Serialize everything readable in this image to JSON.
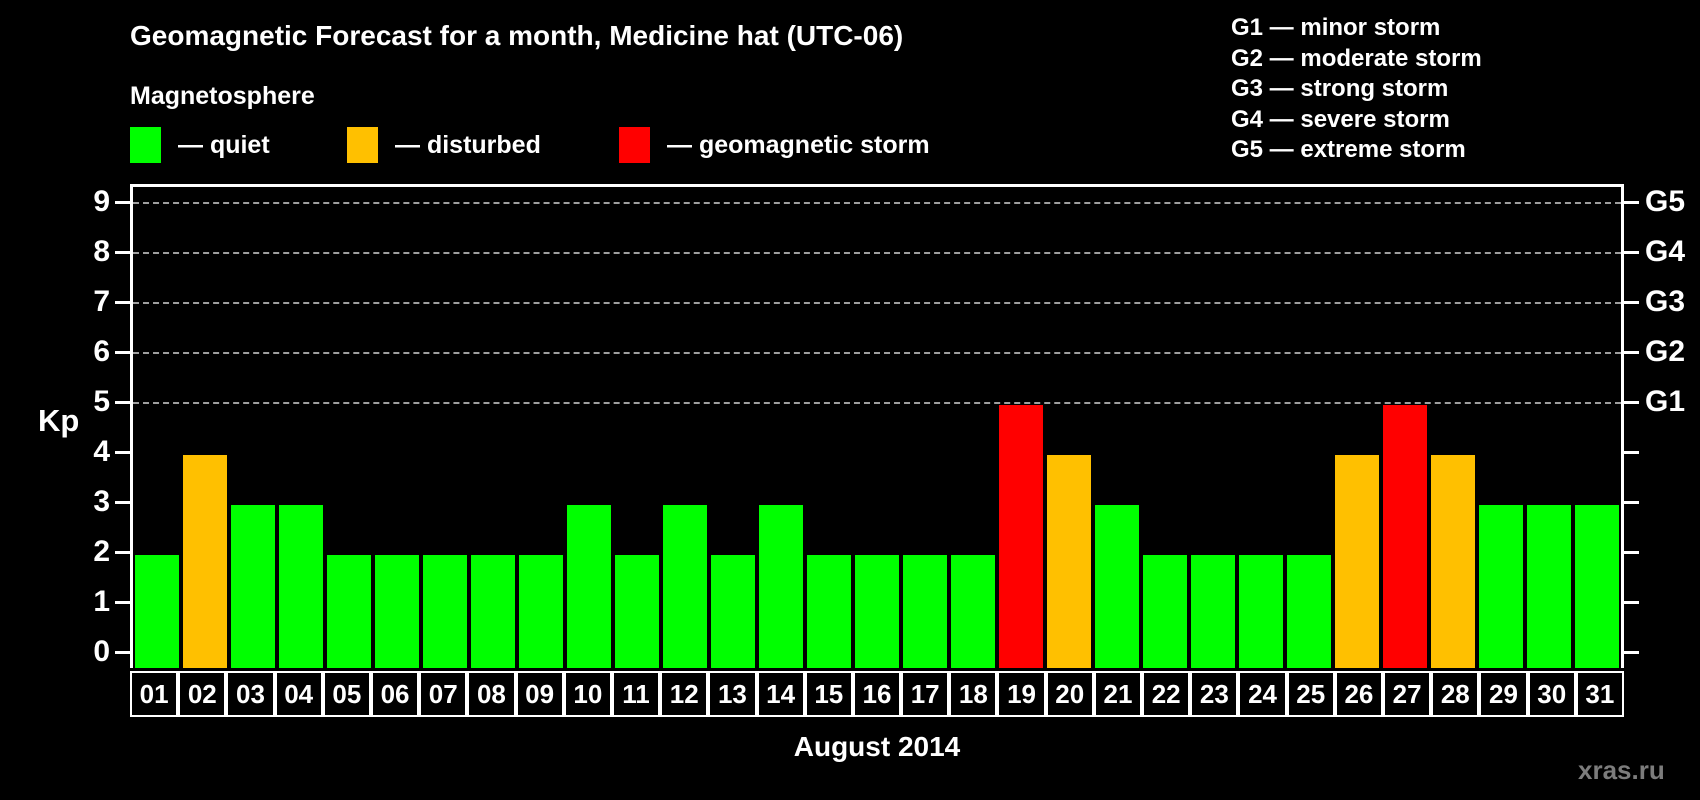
{
  "title": "Geomagnetic Forecast for a month, Medicine hat (UTC-06)",
  "subtitle": "Magnetosphere",
  "legend": {
    "items": [
      {
        "key": "quiet",
        "color": "#00ff00",
        "label": "— quiet"
      },
      {
        "key": "disturbed",
        "color": "#ffc000",
        "label": "— disturbed"
      },
      {
        "key": "storm",
        "color": "#ff0000",
        "label": "— geomagnetic storm"
      }
    ]
  },
  "storm_scale": {
    "items": [
      {
        "code": "G1",
        "label": "G1 — minor storm"
      },
      {
        "code": "G2",
        "label": "G2 — moderate storm"
      },
      {
        "code": "G3",
        "label": "G3 — strong storm"
      },
      {
        "code": "G4",
        "label": "G4 — severe storm"
      },
      {
        "code": "G5",
        "label": "G5 — extreme storm"
      }
    ]
  },
  "watermark": "xras.ru",
  "chart_data": {
    "type": "bar",
    "title": "Geomagnetic Forecast for a month, Medicine hat (UTC-06)",
    "xlabel": "August 2014",
    "ylabel": "Kp",
    "ylim": [
      0,
      9
    ],
    "y_ticks": [
      0,
      1,
      2,
      3,
      4,
      5,
      6,
      7,
      8,
      9
    ],
    "gridlines_at": [
      5,
      6,
      7,
      8,
      9
    ],
    "grid": "dashed horizontal lines at Kp 5-9 only",
    "legend_position": "top-left",
    "right_axis": [
      {
        "value": 5,
        "label": "G1"
      },
      {
        "value": 6,
        "label": "G2"
      },
      {
        "value": 7,
        "label": "G3"
      },
      {
        "value": 8,
        "label": "G4"
      },
      {
        "value": 9,
        "label": "G5"
      }
    ],
    "categories": [
      "01",
      "02",
      "03",
      "04",
      "05",
      "06",
      "07",
      "08",
      "09",
      "10",
      "11",
      "12",
      "13",
      "14",
      "15",
      "16",
      "17",
      "18",
      "19",
      "20",
      "21",
      "22",
      "23",
      "24",
      "25",
      "26",
      "27",
      "28",
      "29",
      "30",
      "31"
    ],
    "values": [
      2,
      4,
      3,
      3,
      2,
      2,
      2,
      2,
      2,
      3,
      2,
      3,
      2,
      3,
      2,
      2,
      2,
      2,
      5,
      4,
      3,
      2,
      2,
      2,
      2,
      4,
      5,
      4,
      3,
      3,
      3
    ],
    "states": [
      "quiet",
      "disturbed",
      "quiet",
      "quiet",
      "quiet",
      "quiet",
      "quiet",
      "quiet",
      "quiet",
      "quiet",
      "quiet",
      "quiet",
      "quiet",
      "quiet",
      "quiet",
      "quiet",
      "quiet",
      "quiet",
      "storm",
      "disturbed",
      "quiet",
      "quiet",
      "quiet",
      "quiet",
      "quiet",
      "disturbed",
      "storm",
      "disturbed",
      "quiet",
      "quiet",
      "quiet"
    ],
    "colors": {
      "quiet": "#00ff00",
      "disturbed": "#ffc000",
      "storm": "#ff0000"
    }
  }
}
